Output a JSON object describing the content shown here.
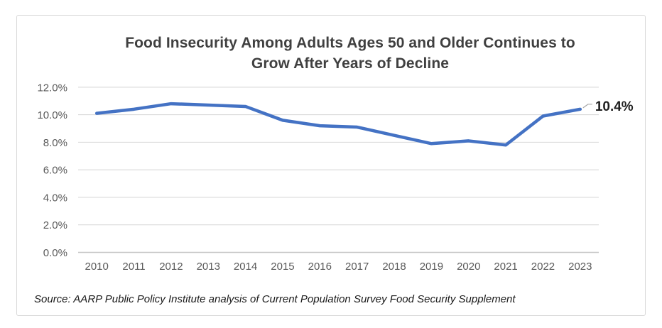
{
  "chart": {
    "title_lines": [
      "Food Insecurity Among Adults Ages 50 and Older Continues to",
      "Grow After Years of Decline"
    ],
    "source_note": "Source: AARP Public Policy Institute analysis of Current Population Survey Food Security Supplement"
  },
  "chart_data": {
    "type": "line",
    "title": "Food Insecurity Among Adults Ages 50 and Older Continues to Grow After Years of Decline",
    "categories": [
      "2010",
      "2011",
      "2012",
      "2013",
      "2014",
      "2015",
      "2016",
      "2017",
      "2018",
      "2019",
      "2020",
      "2021",
      "2022",
      "2023"
    ],
    "values": [
      10.1,
      10.4,
      10.8,
      10.7,
      10.6,
      9.6,
      9.2,
      9.1,
      8.5,
      7.9,
      8.1,
      7.8,
      9.9,
      10.4
    ],
    "unit": "%",
    "ylim": [
      0,
      12
    ],
    "y_tick_values": [
      0,
      2,
      4,
      6,
      8,
      10,
      12
    ],
    "y_tick_labels": [
      "0.0%",
      "2.0%",
      "4.0%",
      "6.0%",
      "8.0%",
      "10.0%",
      "12.0%"
    ],
    "end_label": "10.4%",
    "grid": true,
    "legend": false,
    "xlabel": "",
    "ylabel": ""
  },
  "colors": {
    "line": "#4472C4",
    "title_text": "#404040",
    "axis_text": "#595959",
    "gridline": "#D9D9D9",
    "zero_line": "#C6C6C6",
    "card_border": "#D9D9D9",
    "data_label_text": "#1F1F1F",
    "leader_line": "#A6A6A6",
    "source_text": "#1A1A1A"
  }
}
